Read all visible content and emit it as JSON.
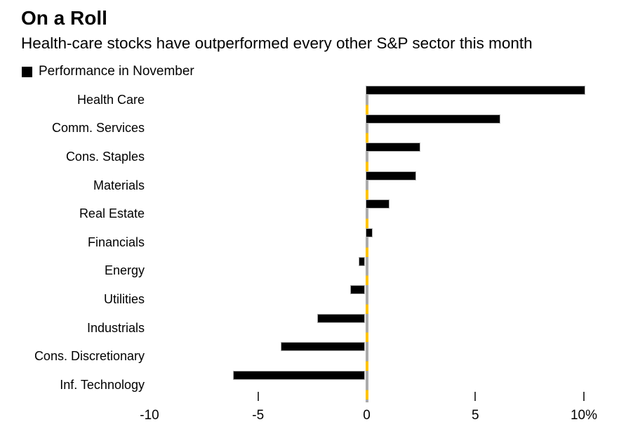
{
  "header": {
    "title": "On a Roll",
    "subtitle": "Health-care stocks have outperformed every other S&P sector this month"
  },
  "legend": {
    "label": "Performance in November",
    "swatch_color": "#000000"
  },
  "chart_data": {
    "type": "bar",
    "orientation": "horizontal",
    "title": "On a Roll",
    "subtitle": "Health-care stocks have outperformed every other S&P sector this month",
    "series_name": "Performance in November",
    "unit": "%",
    "categories": [
      "Health Care",
      "Comm. Services",
      "Cons. Staples",
      "Materials",
      "Real Estate",
      "Financials",
      "Energy",
      "Utilities",
      "Industrials",
      "Cons. Discretionary",
      "Inf. Technology"
    ],
    "values": [
      10.0,
      6.1,
      2.4,
      2.2,
      1.0,
      0.2,
      -0.3,
      -0.7,
      -2.2,
      -3.9,
      -6.1
    ],
    "xlim": [
      -10,
      10
    ],
    "x_ticks": [
      {
        "label": "-10",
        "value": -10,
        "tick_mark": false
      },
      {
        "label": "-5",
        "value": -5,
        "tick_mark": true
      },
      {
        "label": "0",
        "value": 0,
        "tick_mark": false
      },
      {
        "label": "5",
        "value": 5,
        "tick_mark": true
      },
      {
        "label": "10%",
        "value": 10,
        "tick_mark": true
      }
    ],
    "grid": "off",
    "legend_position": "top-left",
    "colors": {
      "bar": "#000000",
      "bar_edge": "#b0b0b0",
      "zero_line_gray": "#ababab",
      "zero_line_yellow": "#ffc400",
      "tick_mark": "#444444",
      "text": "#000000",
      "background": "#ffffff"
    }
  }
}
